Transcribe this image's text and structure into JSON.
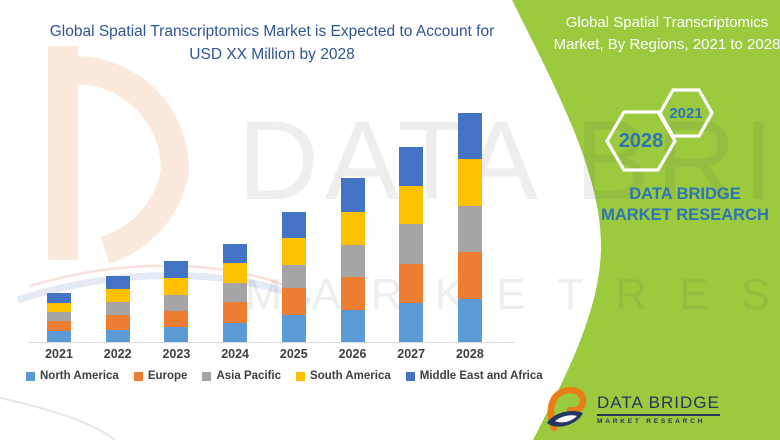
{
  "page": {
    "left_title": "Global Spatial Transcriptomics Market is Expected to Account for USD XX Million by 2028",
    "right_title": "Global Spatial Transcriptomics Market, By Regions, 2021 to 2028",
    "hexagon_large_label": "2028",
    "hexagon_small_label": "2021",
    "brand_text": "DATA BRIDGE MARKET RESEARCH",
    "logo_title": "DATA BRIDGE",
    "logo_subtitle": "MARKET RESEARCH",
    "watermark_line1": "DATA BRIDGE",
    "watermark_line2": "M A R K E T   R E S E A R C H",
    "colors": {
      "green_panel": "#9BCA3E",
      "title_blue": "#2E5596",
      "accent_blue": "#2E75B6",
      "text_dark": "#404040",
      "logo_navy": "#22365E",
      "logo_orange": "#E87E16",
      "axis_line": "#D9D9D9"
    }
  },
  "chart_data": {
    "type": "bar",
    "stacked": true,
    "title": "Global Spatial Transcriptomics Market, By Regions, 2021 to 2028",
    "categories": [
      "2021",
      "2022",
      "2023",
      "2024",
      "2025",
      "2026",
      "2027",
      "2028"
    ],
    "series": [
      {
        "name": "North America",
        "color": "#5B9BD5",
        "values": [
          10.7,
          12.4,
          15.0,
          19.3,
          27.0,
          31.7,
          39.3,
          43.3
        ]
      },
      {
        "name": "Europe",
        "color": "#ED7D31",
        "values": [
          10.3,
          14.3,
          16.0,
          21.0,
          26.7,
          33.3,
          38.4,
          47.0
        ]
      },
      {
        "name": "Asia Pacific",
        "color": "#A5A5A5",
        "values": [
          9.0,
          13.3,
          15.7,
          19.0,
          23.3,
          32.0,
          40.0,
          45.7
        ]
      },
      {
        "name": "South America",
        "color": "#FFC000",
        "values": [
          9.0,
          13.3,
          17.6,
          20.0,
          27.3,
          33.3,
          38.3,
          46.7
        ]
      },
      {
        "name": "Middle East and Africa",
        "color": "#4472C4",
        "values": [
          10.0,
          12.4,
          16.7,
          18.4,
          26.0,
          34.0,
          39.0,
          46.6
        ]
      }
    ],
    "xlabel": "",
    "ylabel": "",
    "y_axis_shown": false,
    "units": "relative stacked heights (numeric values not labeled on chart; title shows USD XX Million)",
    "legend_position": "bottom",
    "grid": false,
    "bar_totals": [
      49.0,
      65.7,
      81.0,
      97.7,
      130.3,
      164.3,
      195.0,
      229.3
    ]
  }
}
